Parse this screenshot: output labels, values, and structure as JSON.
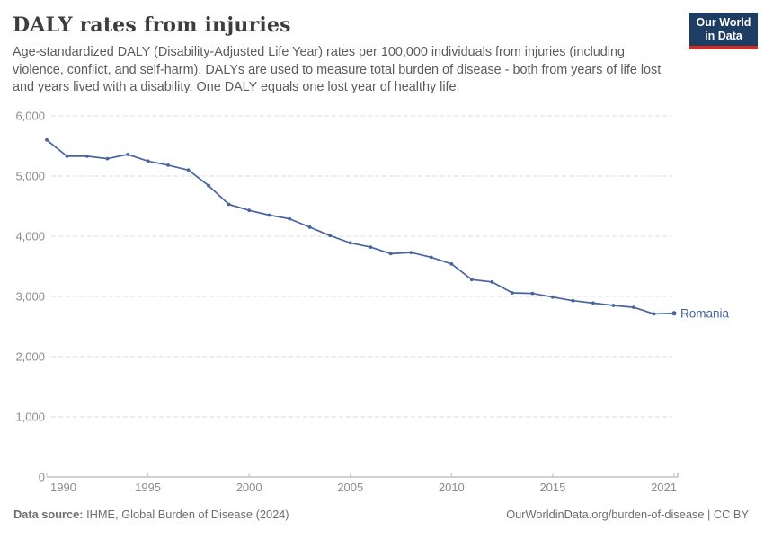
{
  "header": {
    "title": "DALY rates from injuries",
    "subtitle": "Age-standardized DALY (Disability-Adjusted Life Year) rates per 100,000 individuals from injuries (including violence, conflict, and self-harm). DALYs are used to measure total burden of disease - both from years of life lost and years lived with a disability. One DALY equals one lost year of healthy life.",
    "logo": {
      "line1": "Our World",
      "line2": "in Data"
    }
  },
  "chart_data": {
    "type": "line",
    "title": "DALY rates from injuries",
    "x": [
      1990,
      1991,
      1992,
      1993,
      1994,
      1995,
      1996,
      1997,
      1998,
      1999,
      2000,
      2001,
      2002,
      2003,
      2004,
      2005,
      2006,
      2007,
      2008,
      2009,
      2010,
      2011,
      2012,
      2013,
      2014,
      2015,
      2016,
      2017,
      2018,
      2019,
      2020,
      2021
    ],
    "series": [
      {
        "name": "Romania",
        "color": "#4664a0",
        "values": [
          5600,
          5330,
          5330,
          5290,
          5360,
          5250,
          5180,
          5100,
          4840,
          4530,
          4430,
          4350,
          4290,
          4150,
          4010,
          3890,
          3820,
          3710,
          3730,
          3650,
          3540,
          3280,
          3240,
          3060,
          3050,
          2990,
          2930,
          2890,
          2850,
          2820,
          2710,
          2720
        ]
      }
    ],
    "xlabel": "",
    "ylabel": "",
    "xlim": [
      1990,
      2021
    ],
    "ylim": [
      0,
      6000
    ],
    "x_ticks": [
      1990,
      1995,
      2000,
      2005,
      2010,
      2015,
      2021
    ],
    "y_ticks": [
      0,
      1000,
      2000,
      3000,
      4000,
      5000,
      6000
    ],
    "y_tick_labels": [
      "0",
      "1,000",
      "2,000",
      "3,000",
      "4,000",
      "5,000",
      "6,000"
    ],
    "grid": "horizontal dashed",
    "legend_position": "end-of-line label",
    "end_label": "Romania"
  },
  "footer": {
    "source_label": "Data source:",
    "source_text": " IHME, Global Burden of Disease (2024)",
    "link_text": "OurWorldinData.org/burden-of-disease | CC BY"
  },
  "colors": {
    "line": "#4664a0",
    "grid": "#dddddd",
    "axis": "#a3a3a3",
    "tick": "#c2c2c2",
    "tick_label": "#8c8c8c",
    "title": "#3d3d3d",
    "subtitle": "#5b5b5b",
    "footer": "#6e6e6e",
    "logo_bg": "#1d3d63",
    "logo_stripe": "#d42b21"
  }
}
